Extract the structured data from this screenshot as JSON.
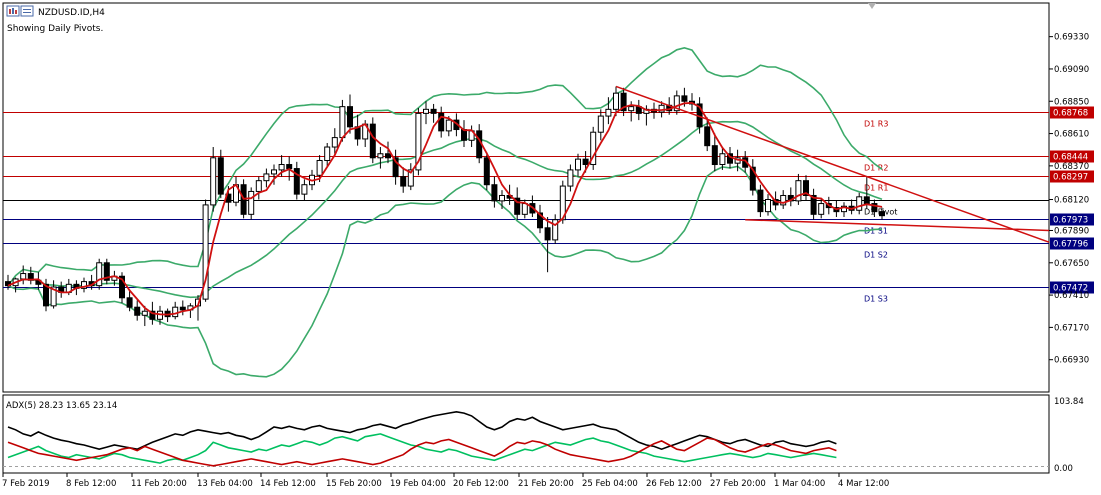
{
  "header": {
    "symbol": "NZDUSD.ID,H4",
    "subtitle": "Showing Daily Pivots."
  },
  "chart_data": {
    "type": "candlestick",
    "price_axis": {
      "ticks": [
        0.6933,
        0.6909,
        0.6885,
        0.6861,
        0.6837,
        0.6812,
        0.6789,
        0.6765,
        0.6741,
        0.6717,
        0.6693
      ],
      "tick_labels": [
        "0.69330",
        "0.69090",
        "0.68850",
        "0.68610",
        "0.68370",
        "0.68120",
        "0.67890",
        "0.67650",
        "0.67410",
        "0.67170",
        "0.66930"
      ],
      "range": [
        0.6669,
        0.6958
      ]
    },
    "time_axis": {
      "labels": [
        "7 Feb 2019",
        "8 Feb 12:00",
        "11 Feb 20:00",
        "13 Feb 04:00",
        "14 Feb 12:00",
        "15 Feb 20:00",
        "19 Feb 04:00",
        "20 Feb 12:00",
        "21 Feb 20:00",
        "25 Feb 04:00",
        "26 Feb 12:00",
        "27 Feb 20:00",
        "1 Mar 04:00",
        "4 Mar 12:00"
      ]
    },
    "pivots": [
      {
        "name": "D1 R3",
        "value": 0.68768,
        "label": "0.68768",
        "color": "#c00000"
      },
      {
        "name": "D1 R2",
        "value": 0.68444,
        "label": "0.68444",
        "color": "#c00000"
      },
      {
        "name": "D1 R1",
        "value": 0.68297,
        "label": "0.68297",
        "color": "#c00000"
      },
      {
        "name": "D1 Pivot",
        "value": 0.6812,
        "label": "",
        "color": "#000000"
      },
      {
        "name": "D1 S1",
        "value": 0.67973,
        "label": "0.67973",
        "color": "#00007f"
      },
      {
        "name": "D1 S2",
        "value": 0.67796,
        "label": "0.67796",
        "color": "#00007f"
      },
      {
        "name": "D1 S3",
        "value": 0.67472,
        "label": "0.67472",
        "color": "#00007f"
      }
    ],
    "candles": [
      {
        "o": 0.6751,
        "h": 0.6756,
        "l": 0.6745,
        "c": 0.6748
      },
      {
        "o": 0.6748,
        "h": 0.6754,
        "l": 0.6743,
        "c": 0.6753
      },
      {
        "o": 0.6753,
        "h": 0.6763,
        "l": 0.6749,
        "c": 0.6757
      },
      {
        "o": 0.6757,
        "h": 0.6762,
        "l": 0.6749,
        "c": 0.6752
      },
      {
        "o": 0.6752,
        "h": 0.6758,
        "l": 0.6745,
        "c": 0.6749
      },
      {
        "o": 0.6749,
        "h": 0.6753,
        "l": 0.6729,
        "c": 0.6733
      },
      {
        "o": 0.6733,
        "h": 0.6752,
        "l": 0.6731,
        "c": 0.6747
      },
      {
        "o": 0.6747,
        "h": 0.6751,
        "l": 0.6739,
        "c": 0.6743
      },
      {
        "o": 0.6743,
        "h": 0.6753,
        "l": 0.6741,
        "c": 0.6749
      },
      {
        "o": 0.6749,
        "h": 0.6752,
        "l": 0.6741,
        "c": 0.6746
      },
      {
        "o": 0.6746,
        "h": 0.6754,
        "l": 0.6743,
        "c": 0.6751
      },
      {
        "o": 0.6751,
        "h": 0.6756,
        "l": 0.6745,
        "c": 0.6748
      },
      {
        "o": 0.6748,
        "h": 0.6768,
        "l": 0.6745,
        "c": 0.6765
      },
      {
        "o": 0.6765,
        "h": 0.6768,
        "l": 0.6749,
        "c": 0.6752
      },
      {
        "o": 0.6752,
        "h": 0.6759,
        "l": 0.6748,
        "c": 0.6755
      },
      {
        "o": 0.6755,
        "h": 0.6758,
        "l": 0.6735,
        "c": 0.6739
      },
      {
        "o": 0.6739,
        "h": 0.6745,
        "l": 0.6729,
        "c": 0.6732
      },
      {
        "o": 0.6732,
        "h": 0.6737,
        "l": 0.6722,
        "c": 0.6726
      },
      {
        "o": 0.6726,
        "h": 0.6733,
        "l": 0.6718,
        "c": 0.6729
      },
      {
        "o": 0.6729,
        "h": 0.6736,
        "l": 0.6719,
        "c": 0.6723
      },
      {
        "o": 0.6723,
        "h": 0.6733,
        "l": 0.6719,
        "c": 0.6729
      },
      {
        "o": 0.6729,
        "h": 0.6731,
        "l": 0.6721,
        "c": 0.6725
      },
      {
        "o": 0.6725,
        "h": 0.6736,
        "l": 0.6723,
        "c": 0.6732
      },
      {
        "o": 0.6732,
        "h": 0.6737,
        "l": 0.6726,
        "c": 0.673
      },
      {
        "o": 0.673,
        "h": 0.6735,
        "l": 0.6724,
        "c": 0.6733
      },
      {
        "o": 0.6733,
        "h": 0.6741,
        "l": 0.6722,
        "c": 0.6738
      },
      {
        "o": 0.6738,
        "h": 0.6812,
        "l": 0.6736,
        "c": 0.6808
      },
      {
        "o": 0.6808,
        "h": 0.6851,
        "l": 0.6803,
        "c": 0.6843
      },
      {
        "o": 0.6843,
        "h": 0.6849,
        "l": 0.6813,
        "c": 0.6816
      },
      {
        "o": 0.6816,
        "h": 0.6822,
        "l": 0.6803,
        "c": 0.681
      },
      {
        "o": 0.681,
        "h": 0.6829,
        "l": 0.6807,
        "c": 0.6823
      },
      {
        "o": 0.6823,
        "h": 0.6827,
        "l": 0.6798,
        "c": 0.6801
      },
      {
        "o": 0.6801,
        "h": 0.6821,
        "l": 0.6797,
        "c": 0.6818
      },
      {
        "o": 0.6818,
        "h": 0.6829,
        "l": 0.6812,
        "c": 0.6826
      },
      {
        "o": 0.6826,
        "h": 0.6835,
        "l": 0.6821,
        "c": 0.6831
      },
      {
        "o": 0.6831,
        "h": 0.6838,
        "l": 0.6823,
        "c": 0.6834
      },
      {
        "o": 0.6834,
        "h": 0.6845,
        "l": 0.6829,
        "c": 0.6838
      },
      {
        "o": 0.6838,
        "h": 0.6844,
        "l": 0.6826,
        "c": 0.6835
      },
      {
        "o": 0.6835,
        "h": 0.684,
        "l": 0.6812,
        "c": 0.6816
      },
      {
        "o": 0.6816,
        "h": 0.6827,
        "l": 0.6811,
        "c": 0.6823
      },
      {
        "o": 0.6823,
        "h": 0.6834,
        "l": 0.6819,
        "c": 0.683
      },
      {
        "o": 0.683,
        "h": 0.6845,
        "l": 0.6825,
        "c": 0.6841
      },
      {
        "o": 0.6841,
        "h": 0.6854,
        "l": 0.6837,
        "c": 0.6851
      },
      {
        "o": 0.6851,
        "h": 0.6865,
        "l": 0.6845,
        "c": 0.6858
      },
      {
        "o": 0.6858,
        "h": 0.6886,
        "l": 0.6855,
        "c": 0.6881
      },
      {
        "o": 0.6881,
        "h": 0.689,
        "l": 0.6861,
        "c": 0.6866
      },
      {
        "o": 0.6866,
        "h": 0.6875,
        "l": 0.6852,
        "c": 0.6857
      },
      {
        "o": 0.6857,
        "h": 0.6871,
        "l": 0.6851,
        "c": 0.6868
      },
      {
        "o": 0.6868,
        "h": 0.6873,
        "l": 0.6839,
        "c": 0.6843
      },
      {
        "o": 0.6843,
        "h": 0.6851,
        "l": 0.6835,
        "c": 0.6846
      },
      {
        "o": 0.6846,
        "h": 0.6855,
        "l": 0.6839,
        "c": 0.6843
      },
      {
        "o": 0.6843,
        "h": 0.6849,
        "l": 0.6823,
        "c": 0.6829
      },
      {
        "o": 0.6829,
        "h": 0.6836,
        "l": 0.6817,
        "c": 0.6822
      },
      {
        "o": 0.6822,
        "h": 0.6839,
        "l": 0.6819,
        "c": 0.6834
      },
      {
        "o": 0.6834,
        "h": 0.688,
        "l": 0.683,
        "c": 0.6876
      },
      {
        "o": 0.6876,
        "h": 0.6885,
        "l": 0.6868,
        "c": 0.6879
      },
      {
        "o": 0.6879,
        "h": 0.6883,
        "l": 0.6869,
        "c": 0.6876
      },
      {
        "o": 0.6876,
        "h": 0.6881,
        "l": 0.6858,
        "c": 0.6863
      },
      {
        "o": 0.6863,
        "h": 0.6874,
        "l": 0.6859,
        "c": 0.6871
      },
      {
        "o": 0.6871,
        "h": 0.6876,
        "l": 0.6859,
        "c": 0.6864
      },
      {
        "o": 0.6864,
        "h": 0.6871,
        "l": 0.6851,
        "c": 0.6856
      },
      {
        "o": 0.6856,
        "h": 0.6867,
        "l": 0.6851,
        "c": 0.6863
      },
      {
        "o": 0.6863,
        "h": 0.6868,
        "l": 0.6839,
        "c": 0.6843
      },
      {
        "o": 0.6843,
        "h": 0.6847,
        "l": 0.6819,
        "c": 0.6823
      },
      {
        "o": 0.6823,
        "h": 0.6829,
        "l": 0.6806,
        "c": 0.6811
      },
      {
        "o": 0.6811,
        "h": 0.6819,
        "l": 0.6805,
        "c": 0.6815
      },
      {
        "o": 0.6815,
        "h": 0.6823,
        "l": 0.6808,
        "c": 0.6813
      },
      {
        "o": 0.6813,
        "h": 0.6821,
        "l": 0.6797,
        "c": 0.6801
      },
      {
        "o": 0.6801,
        "h": 0.6812,
        "l": 0.6798,
        "c": 0.6809
      },
      {
        "o": 0.6809,
        "h": 0.6815,
        "l": 0.6799,
        "c": 0.6802
      },
      {
        "o": 0.6802,
        "h": 0.6808,
        "l": 0.6787,
        "c": 0.6791
      },
      {
        "o": 0.6791,
        "h": 0.6799,
        "l": 0.6758,
        "c": 0.6782
      },
      {
        "o": 0.6782,
        "h": 0.6801,
        "l": 0.6779,
        "c": 0.6797
      },
      {
        "o": 0.6797,
        "h": 0.6826,
        "l": 0.6794,
        "c": 0.6822
      },
      {
        "o": 0.6822,
        "h": 0.6838,
        "l": 0.6818,
        "c": 0.6834
      },
      {
        "o": 0.6834,
        "h": 0.6846,
        "l": 0.6829,
        "c": 0.6842
      },
      {
        "o": 0.6842,
        "h": 0.6848,
        "l": 0.6832,
        "c": 0.6838
      },
      {
        "o": 0.6838,
        "h": 0.6866,
        "l": 0.6834,
        "c": 0.6862
      },
      {
        "o": 0.6862,
        "h": 0.6879,
        "l": 0.6856,
        "c": 0.6874
      },
      {
        "o": 0.6874,
        "h": 0.6888,
        "l": 0.6868,
        "c": 0.6879
      },
      {
        "o": 0.6879,
        "h": 0.6896,
        "l": 0.6874,
        "c": 0.6891
      },
      {
        "o": 0.6891,
        "h": 0.6895,
        "l": 0.6874,
        "c": 0.6878
      },
      {
        "o": 0.6878,
        "h": 0.6885,
        "l": 0.687,
        "c": 0.6881
      },
      {
        "o": 0.6881,
        "h": 0.6886,
        "l": 0.6871,
        "c": 0.6876
      },
      {
        "o": 0.6876,
        "h": 0.6882,
        "l": 0.6867,
        "c": 0.6879
      },
      {
        "o": 0.6879,
        "h": 0.6884,
        "l": 0.6872,
        "c": 0.6877
      },
      {
        "o": 0.6877,
        "h": 0.6885,
        "l": 0.6873,
        "c": 0.6882
      },
      {
        "o": 0.6882,
        "h": 0.6888,
        "l": 0.6875,
        "c": 0.6878
      },
      {
        "o": 0.6878,
        "h": 0.6893,
        "l": 0.6875,
        "c": 0.6889
      },
      {
        "o": 0.6889,
        "h": 0.6895,
        "l": 0.6881,
        "c": 0.6885
      },
      {
        "o": 0.6885,
        "h": 0.6891,
        "l": 0.6878,
        "c": 0.6883
      },
      {
        "o": 0.6883,
        "h": 0.6888,
        "l": 0.6861,
        "c": 0.6866
      },
      {
        "o": 0.6866,
        "h": 0.6873,
        "l": 0.6848,
        "c": 0.6852
      },
      {
        "o": 0.6852,
        "h": 0.6861,
        "l": 0.6833,
        "c": 0.6838
      },
      {
        "o": 0.6838,
        "h": 0.6851,
        "l": 0.6834,
        "c": 0.6846
      },
      {
        "o": 0.6846,
        "h": 0.6851,
        "l": 0.6835,
        "c": 0.6839
      },
      {
        "o": 0.6839,
        "h": 0.6849,
        "l": 0.6833,
        "c": 0.6843
      },
      {
        "o": 0.6843,
        "h": 0.6848,
        "l": 0.6832,
        "c": 0.6836
      },
      {
        "o": 0.6836,
        "h": 0.6842,
        "l": 0.6815,
        "c": 0.6819
      },
      {
        "o": 0.6819,
        "h": 0.6823,
        "l": 0.6799,
        "c": 0.6803
      },
      {
        "o": 0.6803,
        "h": 0.6816,
        "l": 0.68,
        "c": 0.6812
      },
      {
        "o": 0.6812,
        "h": 0.6818,
        "l": 0.6804,
        "c": 0.6808
      },
      {
        "o": 0.6808,
        "h": 0.6819,
        "l": 0.6805,
        "c": 0.6815
      },
      {
        "o": 0.6815,
        "h": 0.6821,
        "l": 0.6807,
        "c": 0.6811
      },
      {
        "o": 0.6811,
        "h": 0.6831,
        "l": 0.6808,
        "c": 0.6826
      },
      {
        "o": 0.6826,
        "h": 0.683,
        "l": 0.6811,
        "c": 0.6815
      },
      {
        "o": 0.6815,
        "h": 0.682,
        "l": 0.6797,
        "c": 0.6801
      },
      {
        "o": 0.6801,
        "h": 0.6813,
        "l": 0.6798,
        "c": 0.6809
      },
      {
        "o": 0.6809,
        "h": 0.6814,
        "l": 0.6801,
        "c": 0.6806
      },
      {
        "o": 0.6806,
        "h": 0.6811,
        "l": 0.6799,
        "c": 0.6803
      },
      {
        "o": 0.6803,
        "h": 0.681,
        "l": 0.6799,
        "c": 0.6807
      },
      {
        "o": 0.6807,
        "h": 0.6812,
        "l": 0.6801,
        "c": 0.6804
      },
      {
        "o": 0.6804,
        "h": 0.6817,
        "l": 0.6801,
        "c": 0.6814
      },
      {
        "o": 0.6814,
        "h": 0.6829,
        "l": 0.6805,
        "c": 0.6809
      },
      {
        "o": 0.6809,
        "h": 0.6812,
        "l": 0.6799,
        "c": 0.6803
      },
      {
        "o": 0.6803,
        "h": 0.6806,
        "l": 0.6797,
        "c": 0.68
      }
    ],
    "adx_panel": {
      "label": "ADX(5) 28.23 13.65 23.14",
      "axis_top_label": "103.84",
      "axis_bottom_label": "0.00",
      "range": [
        0,
        103.84
      ],
      "series": [
        {
          "name": "ADX",
          "color": "#000000",
          "values": [
            62,
            58,
            52,
            49,
            55,
            50,
            46,
            43,
            41,
            38,
            36,
            33,
            30,
            33,
            36,
            34,
            32,
            30,
            35,
            40,
            44,
            48,
            52,
            50,
            55,
            58,
            56,
            54,
            52,
            54,
            50,
            48,
            44,
            48,
            55,
            62,
            60,
            63,
            60,
            58,
            62,
            64,
            60,
            58,
            56,
            54,
            58,
            60,
            64,
            66,
            63,
            60,
            65,
            68,
            72,
            75,
            78,
            80,
            82,
            84,
            82,
            78,
            70,
            62,
            58,
            62,
            70,
            74,
            72,
            76,
            70,
            66,
            62,
            58,
            60,
            62,
            64,
            66,
            62,
            60,
            58,
            52,
            46,
            40,
            36,
            34,
            30,
            34,
            38,
            42,
            46,
            50,
            48,
            44,
            40,
            38,
            42,
            44,
            40,
            36,
            34,
            40,
            42,
            38,
            36,
            34,
            36,
            40,
            42,
            38
          ]
        },
        {
          "name": "+DI",
          "color": "#00c060",
          "values": [
            18,
            22,
            26,
            30,
            34,
            28,
            24,
            20,
            18,
            22,
            20,
            18,
            16,
            20,
            24,
            22,
            18,
            16,
            14,
            12,
            10,
            14,
            16,
            14,
            18,
            22,
            28,
            40,
            36,
            32,
            30,
            28,
            26,
            30,
            28,
            32,
            36,
            34,
            38,
            42,
            40,
            36,
            40,
            46,
            48,
            45,
            42,
            48,
            50,
            52,
            48,
            44,
            40,
            36,
            34,
            30,
            28,
            26,
            30,
            28,
            24,
            20,
            18,
            16,
            14,
            18,
            22,
            26,
            30,
            28,
            32,
            36,
            40,
            38,
            36,
            40,
            44,
            46,
            42,
            40,
            36,
            32,
            28,
            26,
            24,
            20,
            18,
            16,
            14,
            12,
            14,
            16,
            18,
            20,
            22,
            24,
            22,
            20,
            18,
            20,
            24,
            22,
            20,
            18,
            20,
            22,
            24,
            22,
            20,
            18
          ]
        },
        {
          "name": "-DI",
          "color": "#c00000",
          "values": [
            40,
            36,
            32,
            28,
            24,
            22,
            20,
            18,
            16,
            14,
            16,
            18,
            20,
            22,
            26,
            30,
            32,
            28,
            34,
            30,
            26,
            22,
            18,
            14,
            12,
            10,
            8,
            6,
            8,
            10,
            12,
            14,
            16,
            14,
            12,
            10,
            8,
            10,
            12,
            10,
            8,
            10,
            12,
            14,
            16,
            14,
            12,
            10,
            8,
            10,
            14,
            18,
            22,
            30,
            36,
            40,
            38,
            42,
            44,
            40,
            36,
            32,
            28,
            24,
            20,
            26,
            34,
            40,
            38,
            42,
            40,
            36,
            30,
            26,
            22,
            20,
            18,
            16,
            14,
            12,
            14,
            16,
            20,
            26,
            32,
            38,
            42,
            36,
            30,
            28,
            34,
            40,
            46,
            44,
            38,
            32,
            28,
            26,
            30,
            34,
            38,
            36,
            32,
            28,
            26,
            24,
            28,
            30,
            32,
            28
          ]
        }
      ]
    }
  }
}
